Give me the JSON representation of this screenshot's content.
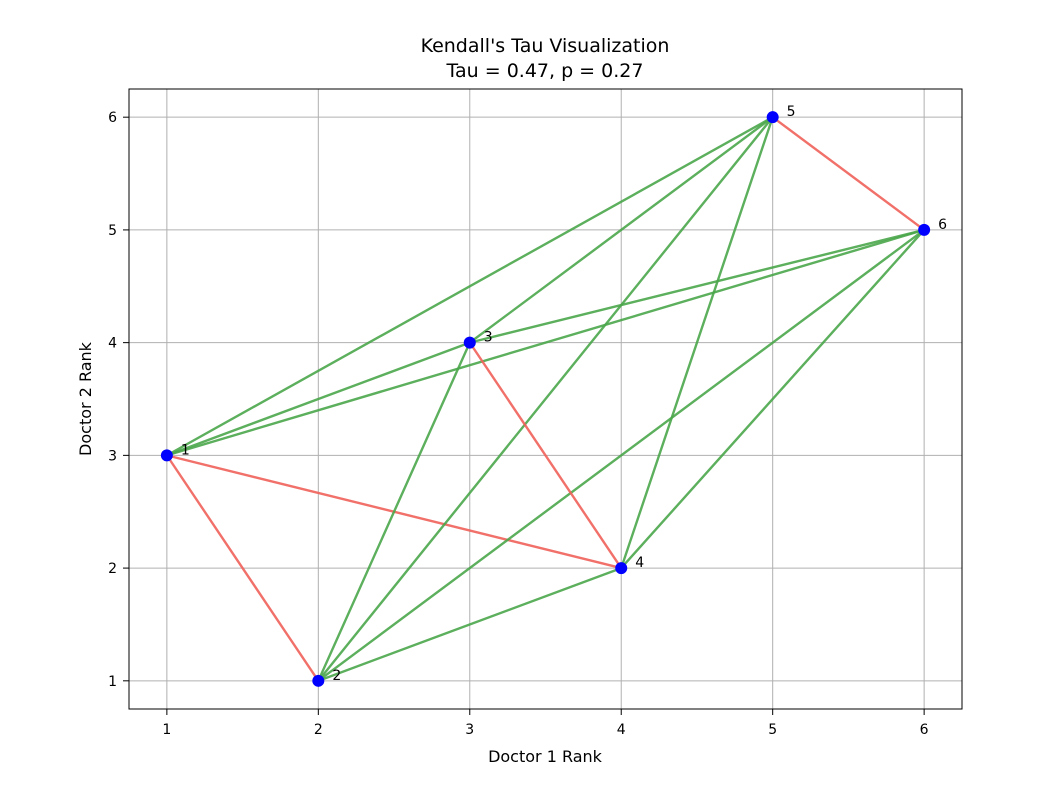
{
  "chart_data": {
    "type": "scatter",
    "title": "Kendall's Tau Visualization",
    "subtitle": "Tau = 0.47, p = 0.27",
    "xlabel": "Doctor 1 Rank",
    "ylabel": "Doctor 2 Rank",
    "xlim": [
      0.75,
      6.25
    ],
    "ylim": [
      0.75,
      6.25
    ],
    "xticks": [
      1,
      2,
      3,
      4,
      5,
      6
    ],
    "yticks": [
      1,
      2,
      3,
      4,
      5,
      6
    ],
    "grid": true,
    "points": [
      {
        "label": "1",
        "x": 1,
        "y": 3
      },
      {
        "label": "2",
        "x": 2,
        "y": 1
      },
      {
        "label": "3",
        "x": 3,
        "y": 4
      },
      {
        "label": "4",
        "x": 4,
        "y": 2
      },
      {
        "label": "5",
        "x": 5,
        "y": 6
      },
      {
        "label": "6",
        "x": 6,
        "y": 5
      }
    ],
    "pairs": [
      {
        "from": "1",
        "to": "2",
        "type": "discordant"
      },
      {
        "from": "1",
        "to": "3",
        "type": "concordant"
      },
      {
        "from": "1",
        "to": "4",
        "type": "discordant"
      },
      {
        "from": "1",
        "to": "5",
        "type": "concordant"
      },
      {
        "from": "1",
        "to": "6",
        "type": "concordant"
      },
      {
        "from": "2",
        "to": "3",
        "type": "concordant"
      },
      {
        "from": "2",
        "to": "4",
        "type": "concordant"
      },
      {
        "from": "2",
        "to": "5",
        "type": "concordant"
      },
      {
        "from": "2",
        "to": "6",
        "type": "concordant"
      },
      {
        "from": "3",
        "to": "4",
        "type": "discordant"
      },
      {
        "from": "3",
        "to": "5",
        "type": "concordant"
      },
      {
        "from": "3",
        "to": "6",
        "type": "concordant"
      },
      {
        "from": "4",
        "to": "5",
        "type": "concordant"
      },
      {
        "from": "4",
        "to": "6",
        "type": "concordant"
      },
      {
        "from": "5",
        "to": "6",
        "type": "discordant"
      }
    ],
    "colors": {
      "point": "#0000ff",
      "concordant": "#4aa64a",
      "discordant": "#f0625a",
      "grid": "#b0b0b0",
      "axes": "#000000"
    }
  }
}
